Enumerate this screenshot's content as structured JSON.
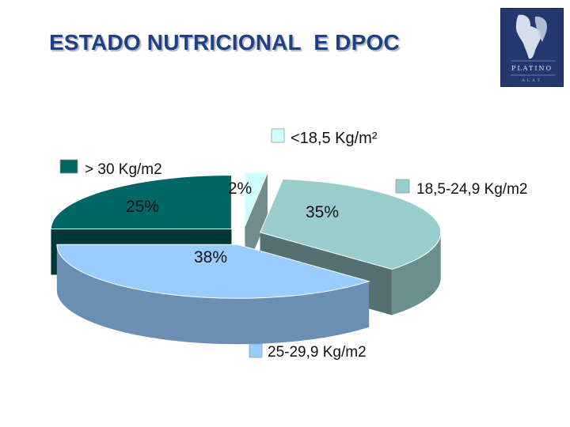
{
  "slide": {
    "title": "ESTADO NUTRICIONAL  E DPOC",
    "logo": {
      "icon": "platino-map-logo",
      "text": "PLATINO",
      "subtext": "ALAT",
      "color": "#22386e"
    }
  },
  "chart_data": {
    "type": "pie",
    "style": "3d-exploded",
    "title": "",
    "legend_placement": "around-slices",
    "slices": [
      {
        "label": "<18,5 Kg/m²",
        "value": 2,
        "data_label": "2%",
        "color": "#ccffff"
      },
      {
        "label": "18,5-24,9 Kg/m2",
        "value": 35,
        "data_label": "35%",
        "color": "#99cccc"
      },
      {
        "label": "25-29,9 Kg/m2",
        "value": 38,
        "data_label": "38%",
        "color": "#99ccff"
      },
      {
        "label": "> 30 Kg/m2",
        "value": 25,
        "data_label": "25%",
        "color": "#006666"
      }
    ]
  }
}
